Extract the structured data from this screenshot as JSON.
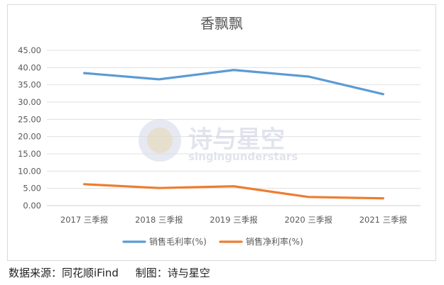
{
  "chart_data": {
    "type": "line",
    "title": "香飘飘",
    "categories": [
      "2017 三季报",
      "2018 三季报",
      "2019 三季报",
      "2020 三季报",
      "2021 三季报"
    ],
    "ylim": [
      0,
      45
    ],
    "yticks": [
      "0.00",
      "5.00",
      "10.00",
      "15.00",
      "20.00",
      "25.00",
      "30.00",
      "35.00",
      "40.00",
      "45.00"
    ],
    "grid": true,
    "legend_position": "bottom",
    "series": [
      {
        "name": "销售毛利率(%)",
        "color": "#5b9bd5",
        "values": [
          38.4,
          36.6,
          39.3,
          37.4,
          32.3
        ]
      },
      {
        "name": "销售净利率(%)",
        "color": "#ed7d31",
        "values": [
          6.2,
          5.1,
          5.6,
          2.5,
          2.1
        ]
      }
    ]
  },
  "watermark": {
    "text": "诗与星空",
    "subtext": "singingunderstars"
  },
  "footer": {
    "source": "数据来源：同花顺iFind",
    "author": "制图：诗与星空"
  }
}
